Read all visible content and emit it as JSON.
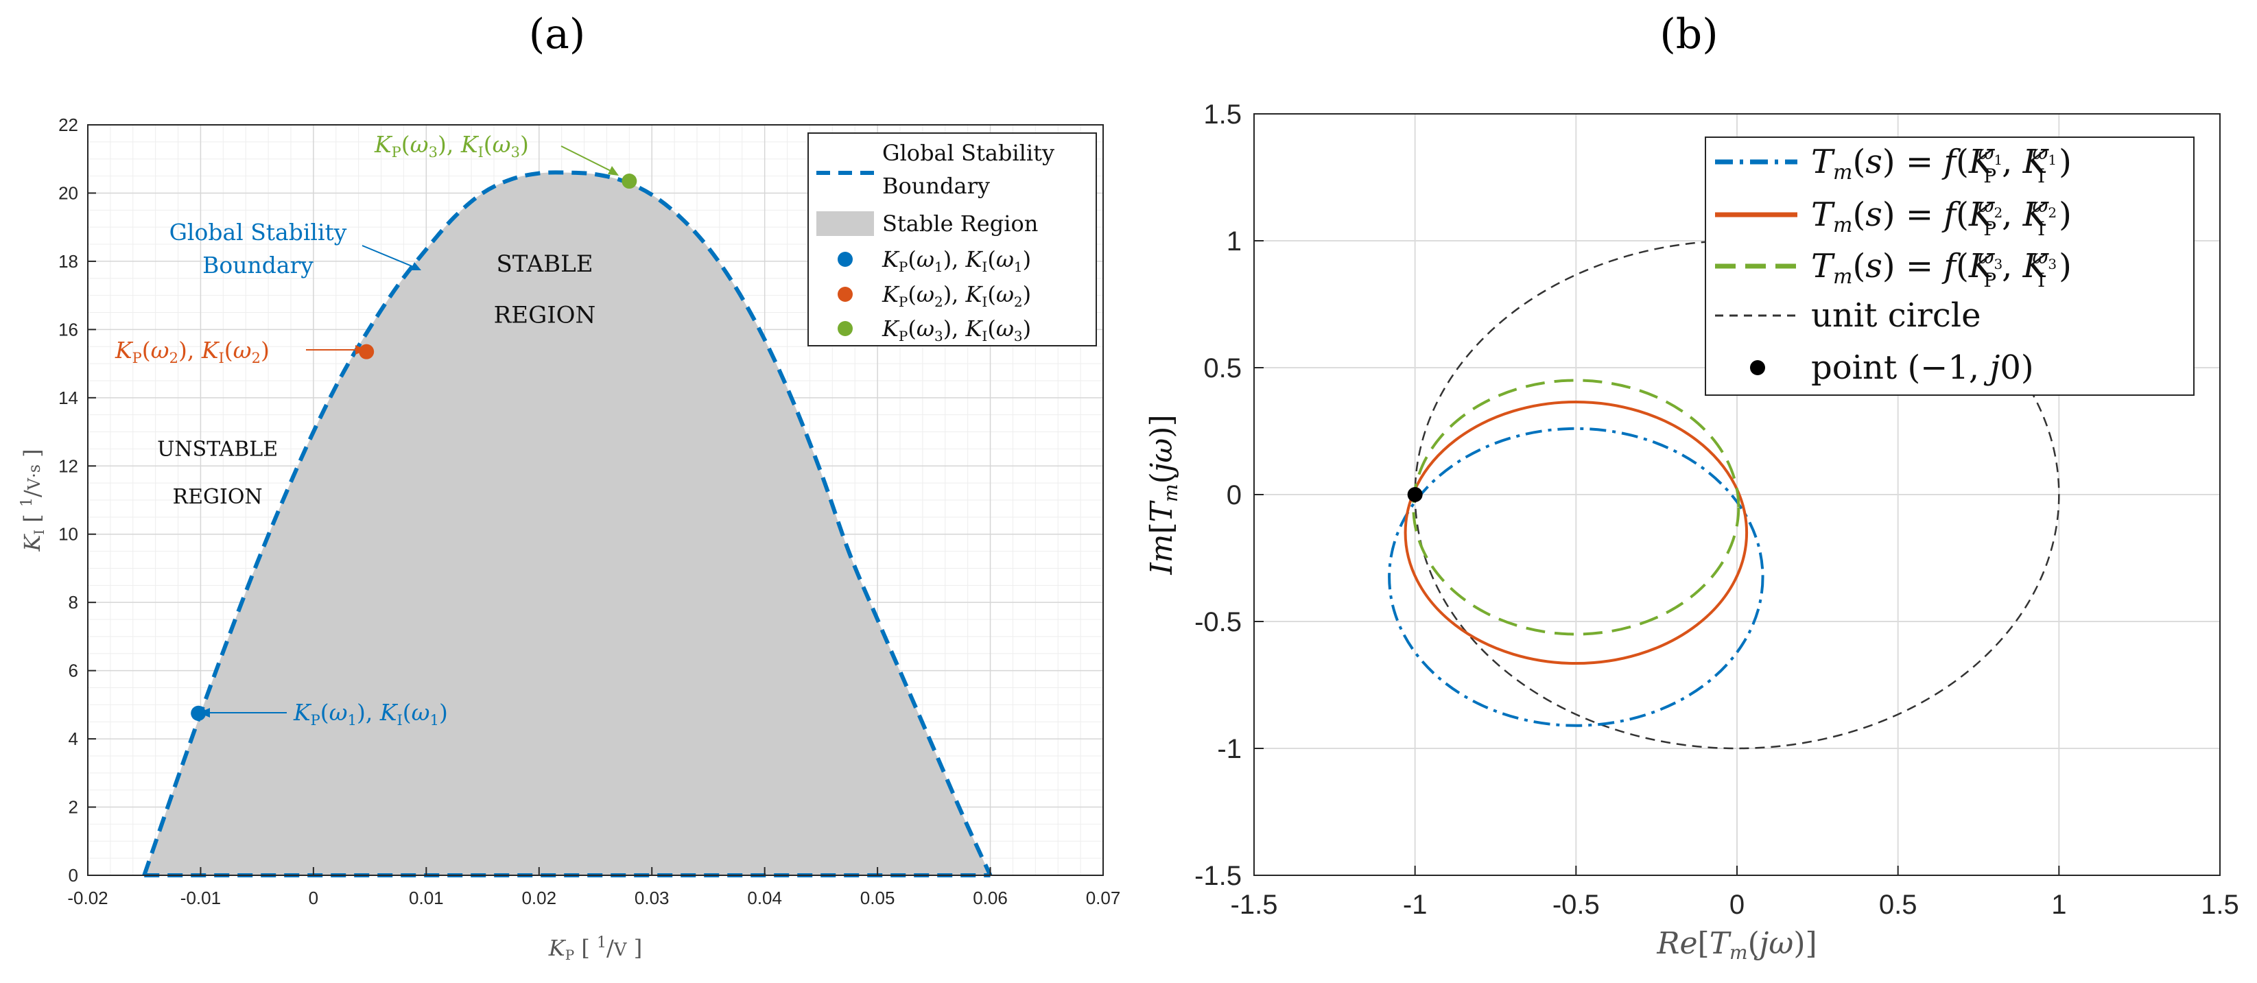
{
  "chart_data": [
    {
      "panel_label": "(a)",
      "type": "area",
      "xlabel": "K_P [ 1/V ]",
      "ylabel": "K_I [ 1/V·s ]",
      "xlim": [
        -0.02,
        0.07
      ],
      "ylim": [
        0,
        22
      ],
      "xticks": [
        "-0.02",
        "-0.01",
        "0",
        "0.01",
        "0.02",
        "0.03",
        "0.04",
        "0.05",
        "0.06",
        "0.07"
      ],
      "yticks": [
        "0",
        "2",
        "4",
        "6",
        "8",
        "10",
        "12",
        "14",
        "16",
        "18",
        "20",
        "22"
      ],
      "grid": true,
      "minor_grid": true,
      "boundary": {
        "name": "Global Stability Boundary",
        "x": [
          -0.015,
          -0.0125,
          -0.01,
          -0.0075,
          -0.005,
          -0.0025,
          0.0,
          0.0025,
          0.005,
          0.0075,
          0.01,
          0.0125,
          0.015,
          0.0175,
          0.02,
          0.0225,
          0.025,
          0.0275,
          0.03,
          0.0325,
          0.035,
          0.0375,
          0.04,
          0.0425,
          0.045,
          0.0475,
          0.05,
          0.0525,
          0.055,
          0.0575,
          0.06
        ],
        "y": [
          0.0,
          2.4,
          4.75,
          7.0,
          9.15,
          11.15,
          13.0,
          14.65,
          16.05,
          17.3,
          18.35,
          19.3,
          20.0,
          20.4,
          20.58,
          20.6,
          20.55,
          20.35,
          19.95,
          19.3,
          18.4,
          17.2,
          15.7,
          13.9,
          11.8,
          9.45,
          7.5,
          5.6,
          3.7,
          1.8,
          0.0
        ]
      },
      "baseline": {
        "x": [
          -0.015,
          0.06
        ],
        "y": [
          0,
          0
        ]
      },
      "region_labels": [
        {
          "text": "STABLE",
          "x": 0.0205,
          "y": 17.7
        },
        {
          "text": "REGION",
          "x": 0.0205,
          "y": 16.2
        },
        {
          "text": "UNSTABLE",
          "x": -0.0085,
          "y": 12.3
        },
        {
          "text": "REGION",
          "x": -0.0085,
          "y": 10.9
        }
      ],
      "points": [
        {
          "name": "K_P(ω1), K_I(ω1)",
          "x": -0.0102,
          "y": 4.75,
          "color": "#0072bd"
        },
        {
          "name": "K_P(ω2), K_I(ω2)",
          "x": 0.0047,
          "y": 15.35,
          "color": "#d95319"
        },
        {
          "name": "K_P(ω3), K_I(ω3)",
          "x": 0.028,
          "y": 20.35,
          "color": "#77ac30"
        }
      ],
      "annotations": [
        {
          "text": "Global Stability",
          "x": -0.005,
          "y": 19.7,
          "color": "#0072bd"
        },
        {
          "text": "Boundary",
          "x": -0.005,
          "y": 18.3,
          "color": "#0072bd"
        },
        {
          "text": "K_P(ω1), K_I(ω1)",
          "x": 0.0065,
          "y": 4.8,
          "color": "#0072bd"
        },
        {
          "text": "K_P(ω2), K_I(ω2)",
          "x": -0.009,
          "y": 15.35,
          "color": "#d95319"
        },
        {
          "text": "K_P(ω3), K_I(ω3)",
          "x": 0.0135,
          "y": 21.2,
          "color": "#77ac30"
        }
      ],
      "legend": {
        "placement": "top-right",
        "entries": [
          {
            "label": "Global Stability",
            "label2": "Boundary",
            "style": "dashed-line",
            "color": "#0072bd"
          },
          {
            "label": "Stable Region",
            "style": "patch",
            "color": "#cccccc"
          },
          {
            "label": "K_P(ω1), K_I(ω1)",
            "style": "marker",
            "color": "#0072bd"
          },
          {
            "label": "K_P(ω2), K_I(ω2)",
            "style": "marker",
            "color": "#d95319"
          },
          {
            "label": "K_P(ω3), K_I(ω3)",
            "style": "marker",
            "color": "#77ac30"
          }
        ]
      }
    },
    {
      "panel_label": "(b)",
      "type": "line",
      "xlabel": "Re[T_m(jω)]",
      "ylabel": "Im[T_m(jω)]",
      "xlim": [
        -1.5,
        1.5
      ],
      "ylim": [
        -1.5,
        1.5
      ],
      "xticks": [
        "-1.5",
        "-1",
        "-0.5",
        "0",
        "0.5",
        "1",
        "1.5"
      ],
      "yticks": [
        "-1.5",
        "-1",
        "-0.5",
        "0",
        "0.5",
        "1",
        "1.5"
      ],
      "grid": true,
      "series": [
        {
          "name": "T_m(s) = f(K_P^ω1, K_I^ω1)",
          "shape": "ellipse",
          "center": [
            -0.5,
            -0.325
          ],
          "radius_x": 0.58,
          "radius_y": 0.585,
          "color": "#0072bd",
          "style": "dashdot"
        },
        {
          "name": "T_m(s) = f(K_P^ω2, K_I^ω2)",
          "shape": "ellipse",
          "center": [
            -0.5,
            -0.15
          ],
          "radius_x": 0.53,
          "radius_y": 0.515,
          "color": "#d95319",
          "style": "solid"
        },
        {
          "name": "T_m(s) = f(K_P^ω3, K_I^ω3)",
          "shape": "ellipse",
          "center": [
            -0.5,
            -0.05
          ],
          "radius_x": 0.505,
          "radius_y": 0.5,
          "color": "#77ac30",
          "style": "dashed"
        },
        {
          "name": "unit circle",
          "shape": "ellipse",
          "center": [
            0,
            0
          ],
          "radius_x": 1,
          "radius_y": 1,
          "color": "#333333",
          "style": "dashed"
        }
      ],
      "points": [
        {
          "name": "point (−1, j0)",
          "x": -1,
          "y": 0,
          "color": "#000000"
        }
      ],
      "legend": {
        "placement": "top-right",
        "entries": [
          {
            "label": "T_m(s) = f(K_P^ω1, K_I^ω1)",
            "style": "dashdot",
            "color": "#0072bd"
          },
          {
            "label": "T_m(s) = f(K_P^ω2, K_I^ω2)",
            "style": "solid",
            "color": "#d95319"
          },
          {
            "label": "T_m(s) = f(K_P^ω3, K_I^ω3)",
            "style": "dashed",
            "color": "#77ac30"
          },
          {
            "label": "unit circle",
            "style": "dashed",
            "color": "#333333"
          },
          {
            "label": "point (−1, j0)",
            "style": "marker",
            "color": "#000000"
          }
        ]
      }
    }
  ]
}
